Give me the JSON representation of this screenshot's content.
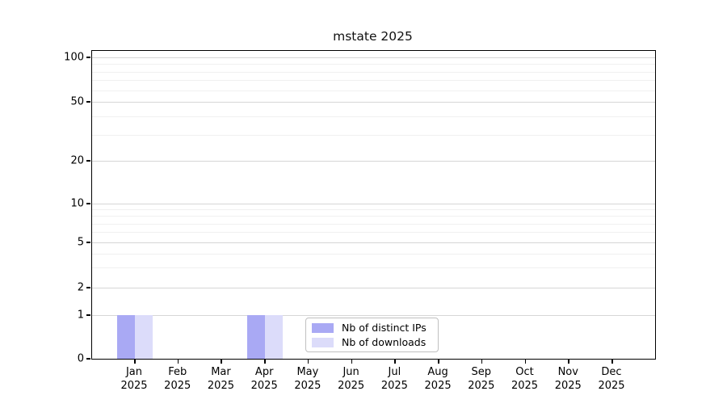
{
  "title": "mstate 2025",
  "chart_data": {
    "type": "bar",
    "title": "mstate 2025",
    "months": [
      "Jan",
      "Feb",
      "Mar",
      "Apr",
      "May",
      "Jun",
      "Jul",
      "Aug",
      "Sep",
      "Oct",
      "Nov",
      "Dec"
    ],
    "year": "2025",
    "series": [
      {
        "name": "Nb of distinct IPs",
        "color": "#a9a9f4",
        "values": [
          1,
          0,
          0,
          1,
          0,
          0,
          0,
          0,
          0,
          0,
          0,
          0
        ]
      },
      {
        "name": "Nb of downloads",
        "color": "#dcdcfa",
        "values": [
          1,
          0,
          0,
          1,
          0,
          0,
          0,
          0,
          0,
          0,
          0,
          0
        ]
      }
    ],
    "y_ticks": [
      0,
      1,
      2,
      5,
      10,
      20,
      50,
      100
    ],
    "y_minor_ticks": [
      3,
      4,
      6,
      7,
      8,
      9,
      30,
      40,
      60,
      70,
      80,
      90
    ],
    "y_scale": "symlog",
    "ylim": [
      0,
      110
    ],
    "grid": {
      "major_color": "#d6d6d6",
      "minor_color": "#f0f0f0"
    },
    "legend_position": "lower center inside",
    "bar_colors": {
      "distinct_ips": "#a9a9f4",
      "downloads": "#dcdcfa"
    }
  }
}
